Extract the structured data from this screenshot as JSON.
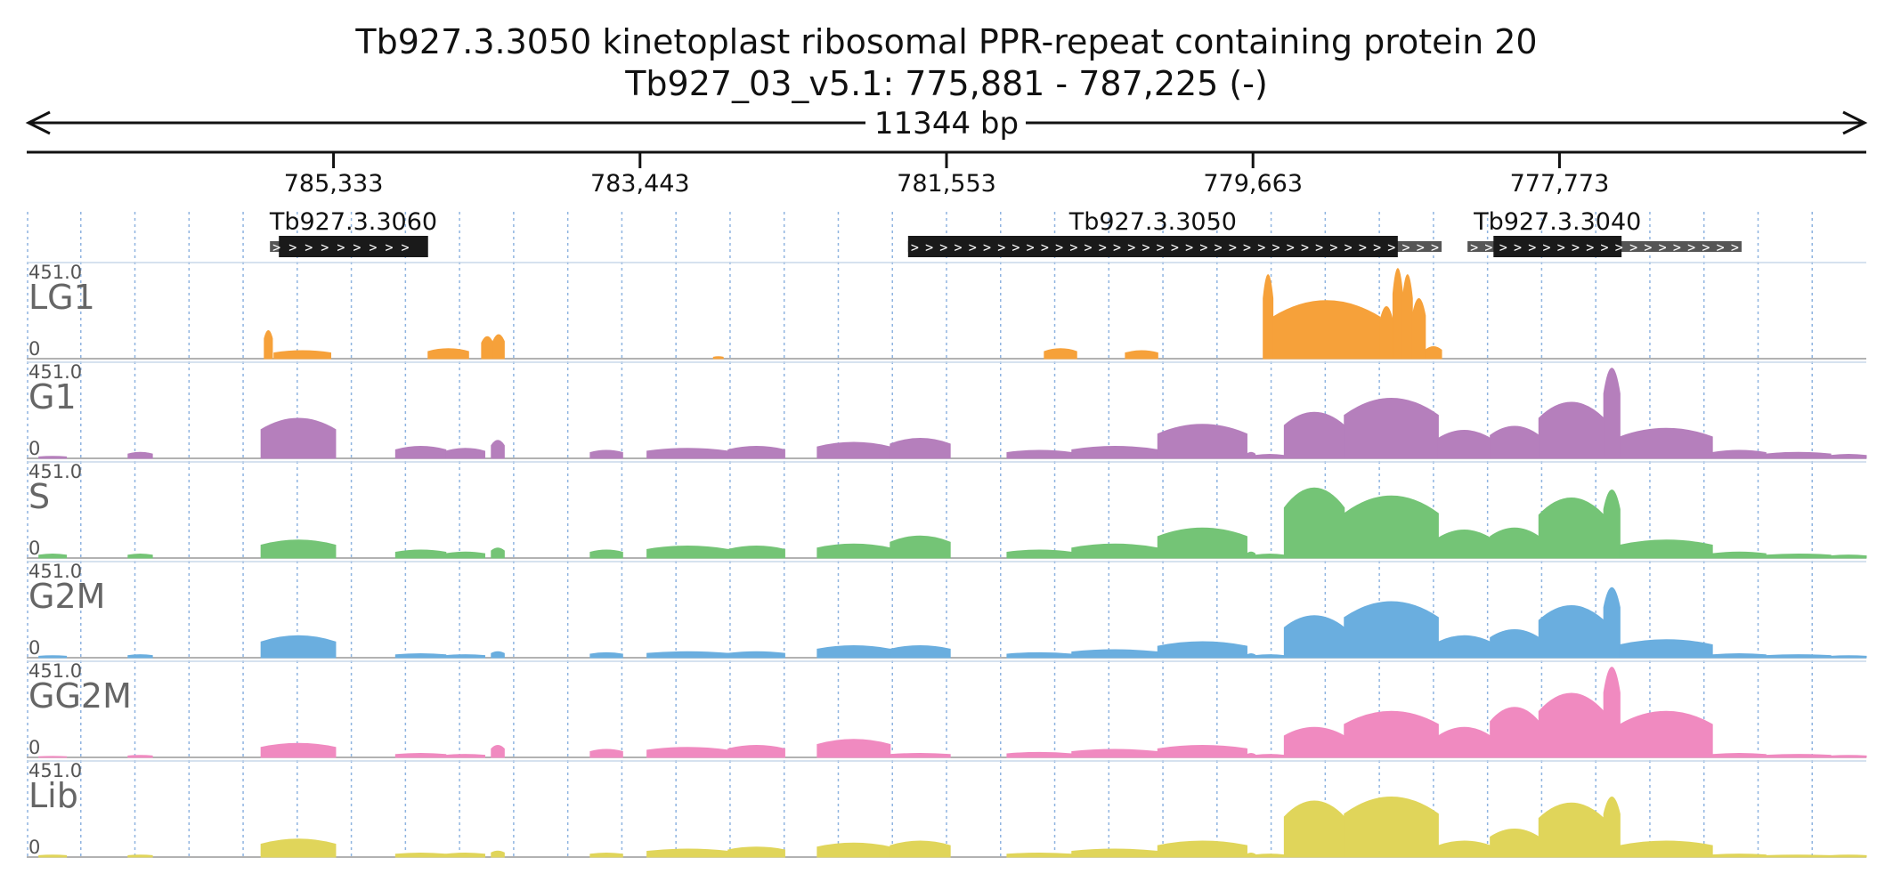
{
  "chart_data": {
    "type": "area",
    "title_line1": "Tb927.3.3050  kinetoplast ribosomal PPR-repeat containing protein 20",
    "title_line2": "Tb927_03_v5.1: 775,881 - 787,225 (-)",
    "span_label": "11344 bp",
    "strand": "-",
    "x_range": [
      787225,
      775881
    ],
    "x_ticks": [
      {
        "value": 785333,
        "label": "785,333"
      },
      {
        "value": 783443,
        "label": "783,443"
      },
      {
        "value": 781553,
        "label": "781,553"
      },
      {
        "value": 779663,
        "label": "779,663"
      },
      {
        "value": 777773,
        "label": "777,773"
      }
    ],
    "genes": [
      {
        "name": "Tb927.3.3060",
        "utr": [
          785725,
          784850
        ],
        "cds": [
          785670,
          784750
        ]
      },
      {
        "name": "Tb927.3.3050",
        "utr": [
          781790,
          778500
        ],
        "cds": [
          781790,
          778770
        ]
      },
      {
        "name": "Tb927.3.3040",
        "utr": [
          778340,
          776650
        ],
        "cds": [
          778180,
          777390
        ]
      }
    ],
    "y_range": [
      0,
      451.0
    ],
    "y_max_label": "451.0",
    "y_min_label": "0",
    "tracks": [
      {
        "name": "LG1",
        "color": "#f6a13a",
        "peaks": [
          [
            785760,
            785710,
            140
          ],
          [
            785700,
            785350,
            40
          ],
          [
            784750,
            784500,
            50
          ],
          [
            784420,
            784350,
            110
          ],
          [
            784350,
            784280,
            120
          ],
          [
            782990,
            782930,
            10
          ],
          [
            780950,
            780750,
            50
          ],
          [
            780450,
            780250,
            40
          ],
          [
            779600,
            779540,
            420
          ],
          [
            779540,
            778880,
            290
          ],
          [
            778880,
            778800,
            260
          ],
          [
            778800,
            778740,
            451
          ],
          [
            778740,
            778680,
            420
          ],
          [
            778680,
            778600,
            300
          ],
          [
            778600,
            778500,
            60
          ]
        ]
      },
      {
        "name": "G1",
        "color": "#b57fbc",
        "peaks": [
          [
            787150,
            786980,
            10
          ],
          [
            786600,
            786450,
            30
          ],
          [
            785780,
            785320,
            200
          ],
          [
            784950,
            784640,
            60
          ],
          [
            784640,
            784400,
            50
          ],
          [
            784360,
            784280,
            90
          ],
          [
            783750,
            783550,
            40
          ],
          [
            783400,
            782900,
            50
          ],
          [
            782900,
            782550,
            60
          ],
          [
            782350,
            781900,
            80
          ],
          [
            781900,
            781530,
            100
          ],
          [
            781180,
            780780,
            40
          ],
          [
            780780,
            780250,
            60
          ],
          [
            780250,
            779700,
            170
          ],
          [
            779700,
            779650,
            30
          ],
          [
            779650,
            779470,
            20
          ],
          [
            779470,
            779100,
            230
          ],
          [
            779100,
            778520,
            300
          ],
          [
            778520,
            778200,
            140
          ],
          [
            778200,
            777900,
            160
          ],
          [
            777900,
            777500,
            280
          ],
          [
            777500,
            777400,
            451
          ],
          [
            777400,
            776830,
            150
          ],
          [
            776830,
            776500,
            40
          ],
          [
            776500,
            776100,
            30
          ],
          [
            776100,
            775881,
            20
          ]
        ]
      },
      {
        "name": "S",
        "color": "#74c476",
        "peaks": [
          [
            787150,
            786980,
            20
          ],
          [
            786600,
            786450,
            20
          ],
          [
            785780,
            785320,
            90
          ],
          [
            784950,
            784640,
            40
          ],
          [
            784640,
            784400,
            30
          ],
          [
            784360,
            784280,
            50
          ],
          [
            783750,
            783550,
            40
          ],
          [
            783400,
            782900,
            60
          ],
          [
            782900,
            782550,
            60
          ],
          [
            782350,
            781900,
            70
          ],
          [
            781900,
            781530,
            110
          ],
          [
            781180,
            780780,
            40
          ],
          [
            780780,
            780250,
            70
          ],
          [
            780250,
            779700,
            150
          ],
          [
            779700,
            779650,
            30
          ],
          [
            779650,
            779470,
            20
          ],
          [
            779470,
            779100,
            350
          ],
          [
            779100,
            778520,
            310
          ],
          [
            778520,
            778200,
            140
          ],
          [
            778200,
            777900,
            150
          ],
          [
            777900,
            777500,
            300
          ],
          [
            777500,
            777400,
            340
          ],
          [
            777400,
            776830,
            90
          ],
          [
            776830,
            776500,
            30
          ],
          [
            776500,
            776100,
            20
          ],
          [
            776100,
            775881,
            15
          ]
        ]
      },
      {
        "name": "G2M",
        "color": "#6aaedf",
        "peaks": [
          [
            787150,
            786980,
            10
          ],
          [
            786600,
            786450,
            15
          ],
          [
            785780,
            785320,
            110
          ],
          [
            784950,
            784640,
            20
          ],
          [
            784640,
            784400,
            15
          ],
          [
            784360,
            784280,
            30
          ],
          [
            783750,
            783550,
            25
          ],
          [
            783400,
            782900,
            30
          ],
          [
            782900,
            782550,
            30
          ],
          [
            782350,
            781900,
            60
          ],
          [
            781900,
            781530,
            60
          ],
          [
            781180,
            780780,
            25
          ],
          [
            780780,
            780250,
            40
          ],
          [
            780250,
            779700,
            80
          ],
          [
            779700,
            779650,
            20
          ],
          [
            779650,
            779470,
            15
          ],
          [
            779470,
            779100,
            210
          ],
          [
            779100,
            778520,
            280
          ],
          [
            778520,
            778200,
            110
          ],
          [
            778200,
            777900,
            140
          ],
          [
            777900,
            777500,
            260
          ],
          [
            777500,
            777400,
            350
          ],
          [
            777400,
            776830,
            90
          ],
          [
            776830,
            776500,
            20
          ],
          [
            776500,
            776100,
            15
          ],
          [
            776100,
            775881,
            10
          ]
        ]
      },
      {
        "name": "GG2M",
        "color": "#f08ac0",
        "peaks": [
          [
            787150,
            786980,
            5
          ],
          [
            786600,
            786450,
            10
          ],
          [
            785780,
            785320,
            70
          ],
          [
            784950,
            784640,
            20
          ],
          [
            784640,
            784400,
            15
          ],
          [
            784360,
            784280,
            60
          ],
          [
            783750,
            783550,
            40
          ],
          [
            783400,
            782900,
            50
          ],
          [
            782900,
            782550,
            60
          ],
          [
            782350,
            781900,
            90
          ],
          [
            781900,
            781530,
            20
          ],
          [
            781180,
            780780,
            25
          ],
          [
            780780,
            780250,
            40
          ],
          [
            780250,
            779700,
            60
          ],
          [
            779700,
            779650,
            20
          ],
          [
            779650,
            779470,
            15
          ],
          [
            779470,
            779100,
            150
          ],
          [
            779100,
            778520,
            230
          ],
          [
            778520,
            778200,
            150
          ],
          [
            778200,
            777900,
            250
          ],
          [
            777900,
            777500,
            320
          ],
          [
            777500,
            777400,
            451
          ],
          [
            777400,
            776830,
            230
          ],
          [
            776830,
            776500,
            20
          ],
          [
            776500,
            776100,
            15
          ],
          [
            776100,
            775881,
            10
          ]
        ]
      },
      {
        "name": "Lib",
        "color": "#e0d55a",
        "peaks": [
          [
            787150,
            786980,
            10
          ],
          [
            786600,
            786450,
            10
          ],
          [
            785780,
            785320,
            90
          ],
          [
            784950,
            784640,
            20
          ],
          [
            784640,
            784400,
            20
          ],
          [
            784360,
            784280,
            30
          ],
          [
            783750,
            783550,
            20
          ],
          [
            783400,
            782900,
            40
          ],
          [
            782900,
            782550,
            50
          ],
          [
            782350,
            781900,
            70
          ],
          [
            781900,
            781530,
            80
          ],
          [
            781180,
            780780,
            20
          ],
          [
            780780,
            780250,
            40
          ],
          [
            780250,
            779700,
            80
          ],
          [
            779700,
            779650,
            20
          ],
          [
            779650,
            779470,
            15
          ],
          [
            779470,
            779100,
            280
          ],
          [
            779100,
            778520,
            300
          ],
          [
            778520,
            778200,
            80
          ],
          [
            778200,
            777900,
            140
          ],
          [
            777900,
            777500,
            270
          ],
          [
            777500,
            777400,
            300
          ],
          [
            777400,
            776830,
            80
          ],
          [
            776830,
            776500,
            15
          ],
          [
            776500,
            776100,
            10
          ],
          [
            776100,
            775881,
            10
          ]
        ]
      }
    ]
  }
}
